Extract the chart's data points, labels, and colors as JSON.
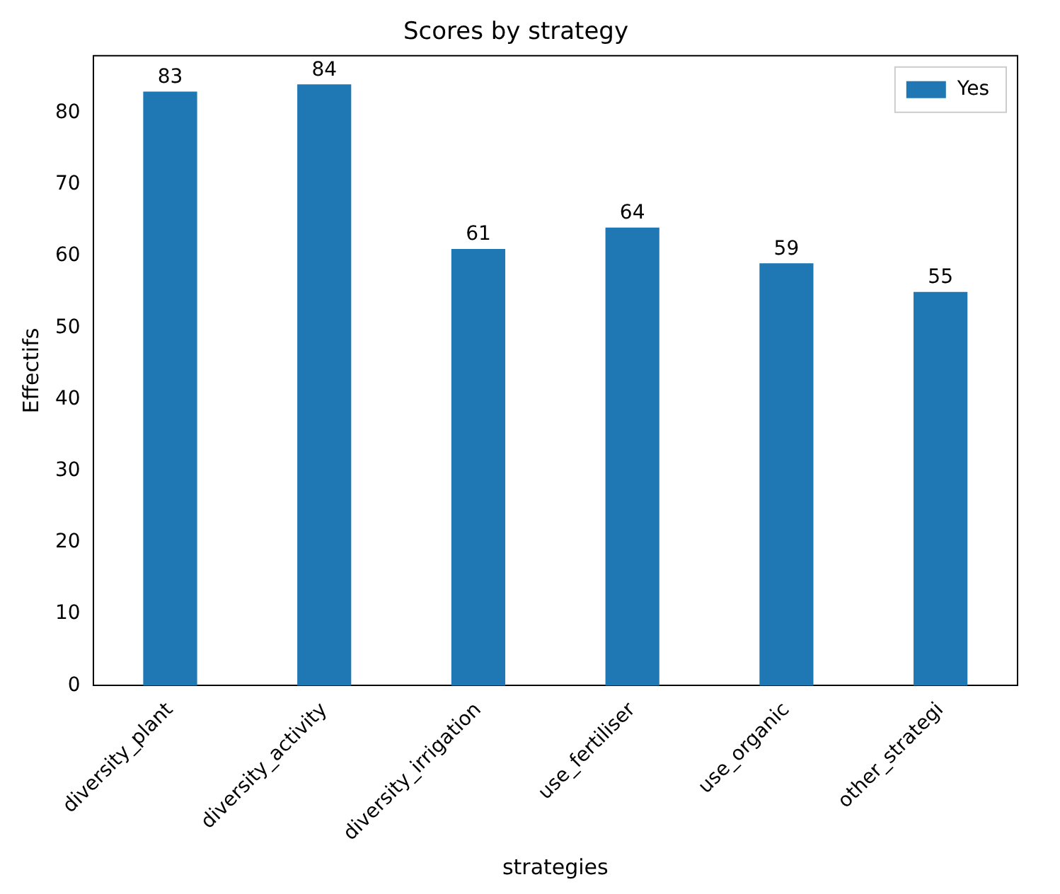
{
  "chart_data": {
    "type": "bar",
    "title": "Scores by strategy",
    "xlabel": "strategies",
    "ylabel": "Effectifs",
    "categories": [
      "diversity_plant",
      "diversity_activity",
      "diversity_irrigation",
      "use_fertiliser",
      "use_organic",
      "other_strategi"
    ],
    "series": [
      {
        "name": "Yes",
        "color": "#1f77b4",
        "values": [
          83,
          84,
          61,
          64,
          59,
          55
        ]
      }
    ],
    "ylim": [
      0,
      88
    ],
    "yticks": [
      0,
      10,
      20,
      30,
      40,
      50,
      60,
      70,
      80
    ],
    "grid": false,
    "legend": "top right",
    "data_labels": true
  }
}
